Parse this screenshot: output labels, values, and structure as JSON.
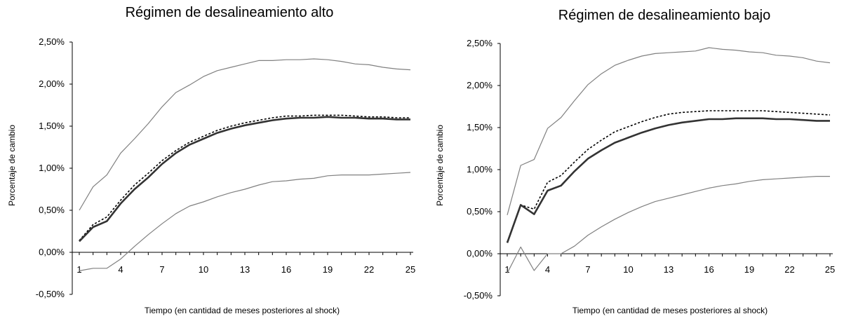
{
  "chart_data": [
    {
      "type": "line",
      "title": "Régimen de desalineamiento alto",
      "xlabel": "Tiempo (en cantidad de meses posteriores al shock)",
      "ylabel": "Porcentaje de cambio",
      "ylim": [
        -0.005,
        0.025
      ],
      "yticks": [
        "-0,50%",
        "0,00%",
        "0,50%",
        "1,00%",
        "1,50%",
        "2,00%",
        "2,50%"
      ],
      "xticks": [
        "1",
        "4",
        "7",
        "10",
        "13",
        "16",
        "19",
        "22",
        "25"
      ],
      "x": [
        1,
        2,
        3,
        4,
        5,
        6,
        7,
        8,
        9,
        10,
        11,
        12,
        13,
        14,
        15,
        16,
        17,
        18,
        19,
        20,
        21,
        22,
        23,
        24,
        25
      ],
      "grid": false,
      "series": [
        {
          "style": "bold-solid",
          "color": "#333333",
          "values": [
            0.0013,
            0.003,
            0.0037,
            0.0058,
            0.0075,
            0.0089,
            0.0105,
            0.0118,
            0.0128,
            0.0135,
            0.0142,
            0.0147,
            0.0151,
            0.0154,
            0.0157,
            0.0159,
            0.016,
            0.016,
            0.0161,
            0.016,
            0.016,
            0.0159,
            0.0159,
            0.0158,
            0.0158
          ]
        },
        {
          "style": "dotted",
          "color": "#000000",
          "values": [
            0.0014,
            0.0033,
            0.0042,
            0.0062,
            0.008,
            0.0094,
            0.0109,
            0.0121,
            0.0131,
            0.0138,
            0.0145,
            0.015,
            0.0154,
            0.0157,
            0.016,
            0.0162,
            0.0162,
            0.0163,
            0.0163,
            0.0163,
            0.0162,
            0.0161,
            0.0161,
            0.016,
            0.016
          ]
        },
        {
          "style": "upper-band",
          "color": "#808080",
          "values": [
            0.005,
            0.0078,
            0.0092,
            0.0118,
            0.0135,
            0.0153,
            0.0173,
            0.019,
            0.0199,
            0.0209,
            0.0216,
            0.022,
            0.0224,
            0.0228,
            0.0228,
            0.0229,
            0.0229,
            0.023,
            0.0229,
            0.0227,
            0.0224,
            0.0223,
            0.022,
            0.0218,
            0.0217
          ]
        },
        {
          "style": "lower-band",
          "color": "#808080",
          "values": [
            -0.0022,
            -0.0019,
            -0.0019,
            -0.0008,
            0.0007,
            0.0021,
            0.0034,
            0.0046,
            0.0055,
            0.006,
            0.0066,
            0.0071,
            0.0075,
            0.008,
            0.0084,
            0.0085,
            0.0087,
            0.0088,
            0.0091,
            0.0092,
            0.0092,
            0.0092,
            0.0093,
            0.0094,
            0.0095
          ]
        }
      ]
    },
    {
      "type": "line",
      "title": "Régimen de desalineamiento bajo",
      "xlabel": "Tiempo (en cantidad de meses posteriores al shock)",
      "ylabel": "Porcentaje de cambio",
      "ylim": [
        -0.005,
        0.025
      ],
      "yticks": [
        "-0,50%",
        "0,00%",
        "0,50%",
        "1,00%",
        "1,50%",
        "2,00%",
        "2,50%"
      ],
      "xticks": [
        "1",
        "4",
        "7",
        "10",
        "13",
        "16",
        "19",
        "22",
        "25"
      ],
      "x": [
        1,
        2,
        3,
        4,
        5,
        6,
        7,
        8,
        9,
        10,
        11,
        12,
        13,
        14,
        15,
        16,
        17,
        18,
        19,
        20,
        21,
        22,
        23,
        24,
        25
      ],
      "grid": false,
      "series": [
        {
          "style": "bold-solid",
          "color": "#333333",
          "values": [
            0.0013,
            0.0058,
            0.0047,
            0.0075,
            0.0081,
            0.0098,
            0.0113,
            0.0123,
            0.0132,
            0.0138,
            0.0144,
            0.0149,
            0.0153,
            0.0156,
            0.0158,
            0.016,
            0.016,
            0.0161,
            0.0161,
            0.0161,
            0.016,
            0.016,
            0.0159,
            0.0158,
            0.0158
          ]
        },
        {
          "style": "dotted",
          "color": "#000000",
          "values": [
            0.0014,
            0.0058,
            0.0053,
            0.0085,
            0.0093,
            0.0109,
            0.0124,
            0.0135,
            0.0145,
            0.0151,
            0.0157,
            0.0162,
            0.0166,
            0.0168,
            0.0169,
            0.017,
            0.017,
            0.017,
            0.017,
            0.017,
            0.0169,
            0.0168,
            0.0167,
            0.0166,
            0.0165
          ]
        },
        {
          "style": "upper-band",
          "color": "#808080",
          "values": [
            0.0046,
            0.0105,
            0.0112,
            0.0149,
            0.0162,
            0.0182,
            0.0201,
            0.0214,
            0.0224,
            0.023,
            0.0235,
            0.0238,
            0.0239,
            0.024,
            0.0241,
            0.0245,
            0.0243,
            0.0242,
            0.024,
            0.0239,
            0.0236,
            0.0235,
            0.0233,
            0.0229,
            0.0227
          ]
        },
        {
          "style": "lower-band",
          "color": "#808080",
          "values": [
            -0.0023,
            0.0008,
            -0.002,
            0.0,
            0.0,
            0.0009,
            0.0022,
            0.0032,
            0.0041,
            0.0049,
            0.0056,
            0.0062,
            0.0066,
            0.007,
            0.0074,
            0.0078,
            0.0081,
            0.0083,
            0.0086,
            0.0088,
            0.0089,
            0.009,
            0.0091,
            0.0092,
            0.0092
          ]
        }
      ]
    }
  ]
}
